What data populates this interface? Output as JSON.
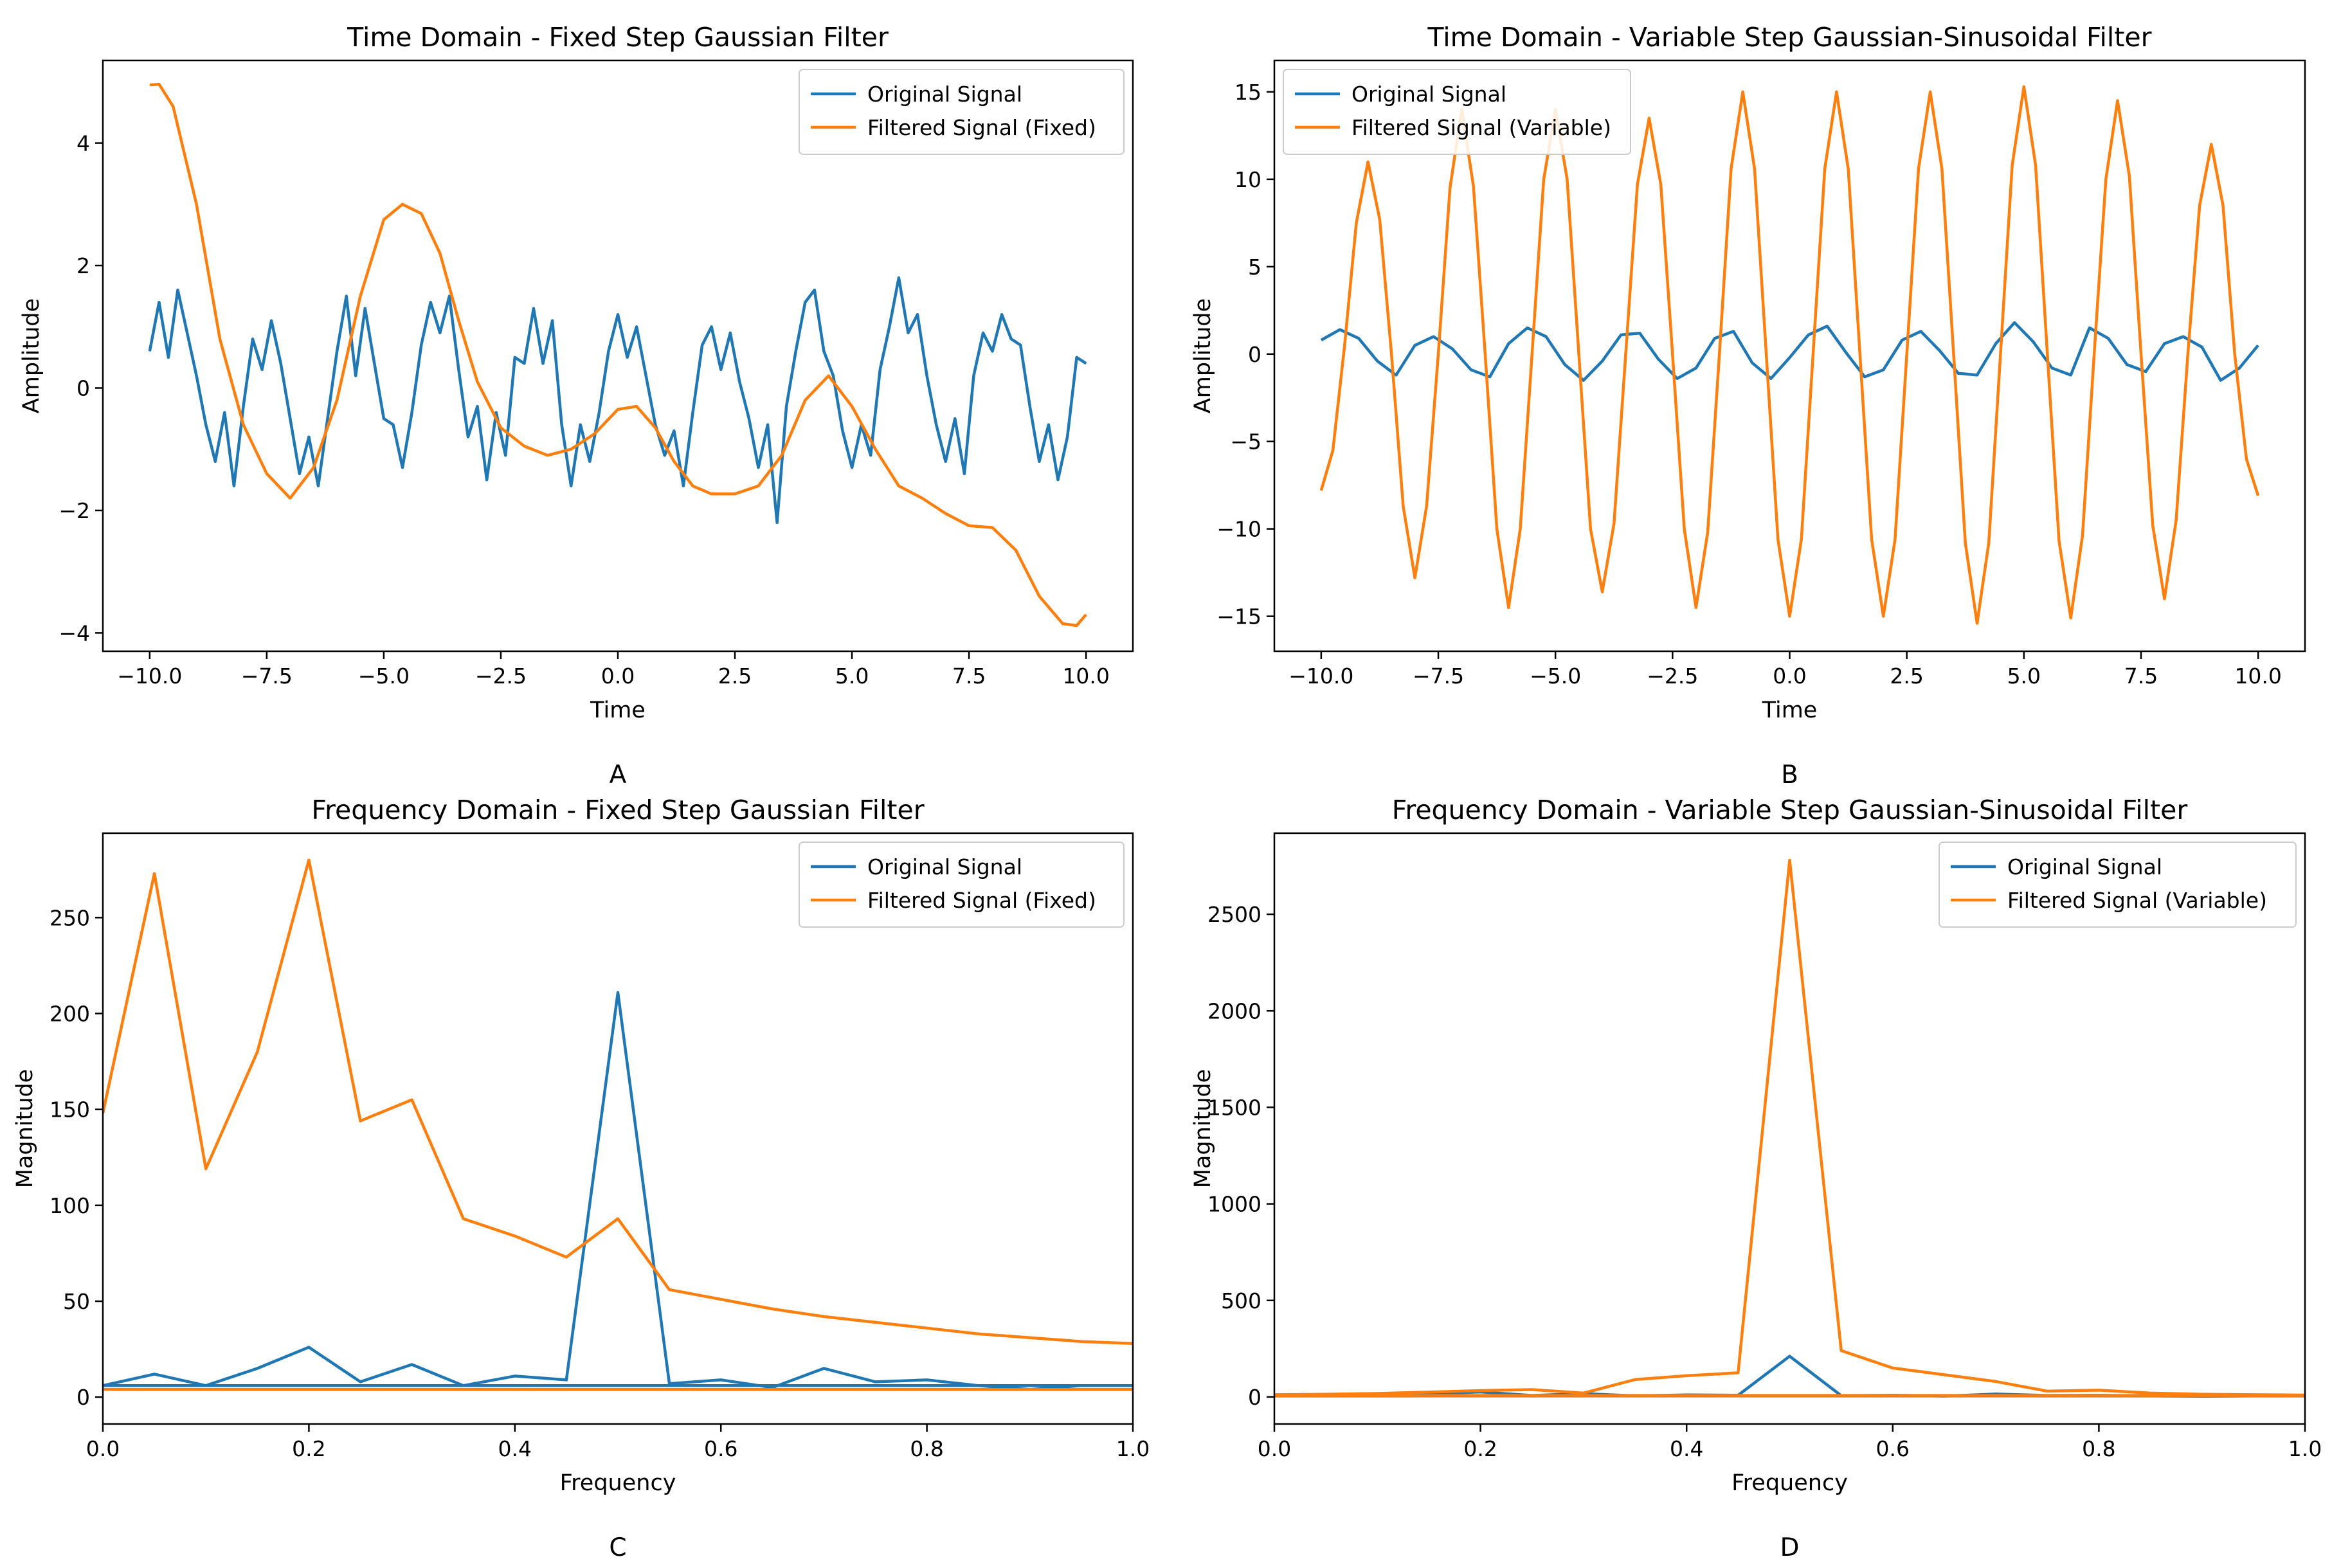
{
  "colors": {
    "original": "#1f77b4",
    "filtered": "#ff7f0e"
  },
  "chart_data": [
    {
      "type": "line",
      "title": "Time Domain - Fixed Step Gaussian Filter",
      "xlabel": "Time",
      "ylabel": "Amplitude",
      "panel_label": "A",
      "xlim": [
        -11.0,
        11.0
      ],
      "ylim": [
        -4.3,
        5.35
      ],
      "xticks": [
        -10.0,
        -7.5,
        -5.0,
        -2.5,
        0.0,
        2.5,
        5.0,
        7.5,
        10.0
      ],
      "xtick_labels": [
        "−10.0",
        "−7.5",
        "−5.0",
        "−2.5",
        "0.0",
        "2.5",
        "5.0",
        "7.5",
        "10.0"
      ],
      "yticks": [
        -4,
        -2,
        0,
        2,
        4
      ],
      "ytick_labels": [
        "−4",
        "−2",
        "0",
        "2",
        "4"
      ],
      "legend_position": "upper right",
      "series": [
        {
          "name": "Original Signal",
          "color": "#1f77b4",
          "x": [
            -10.0,
            -9.8,
            -9.6,
            -9.4,
            -9.2,
            -9.0,
            -8.8,
            -8.6,
            -8.4,
            -8.2,
            -8.0,
            -7.8,
            -7.6,
            -7.4,
            -7.2,
            -7.0,
            -6.8,
            -6.6,
            -6.4,
            -6.2,
            -6.0,
            -5.8,
            -5.6,
            -5.4,
            -5.2,
            -5.0,
            -4.8,
            -4.6,
            -4.4,
            -4.2,
            -4.0,
            -3.8,
            -3.6,
            -3.4,
            -3.2,
            -3.0,
            -2.8,
            -2.6,
            -2.4,
            -2.2,
            -2.0,
            -1.8,
            -1.6,
            -1.4,
            -1.2,
            -1.0,
            -0.8,
            -0.6,
            -0.4,
            -0.2,
            0.0,
            0.2,
            0.4,
            0.6,
            0.8,
            1.0,
            1.2,
            1.4,
            1.6,
            1.8,
            2.0,
            2.2,
            2.4,
            2.6,
            2.8,
            3.0,
            3.2,
            3.4,
            3.6,
            3.8,
            4.0,
            4.2,
            4.4,
            4.6,
            4.8,
            5.0,
            5.2,
            5.4,
            5.6,
            5.8,
            6.0,
            6.2,
            6.4,
            6.6,
            6.8,
            7.0,
            7.2,
            7.4,
            7.6,
            7.8,
            8.0,
            8.2,
            8.4,
            8.6,
            8.8,
            9.0,
            9.2,
            9.4,
            9.6,
            9.8,
            10.0
          ],
          "y": [
            0.6,
            1.4,
            0.5,
            1.6,
            0.9,
            0.2,
            -0.6,
            -1.2,
            -0.4,
            -1.6,
            -0.3,
            0.8,
            0.3,
            1.1,
            0.4,
            -0.5,
            -1.4,
            -0.8,
            -1.6,
            -0.5,
            0.6,
            1.5,
            0.2,
            1.3,
            0.4,
            -0.5,
            -0.6,
            -1.3,
            -0.4,
            0.7,
            1.4,
            0.9,
            1.5,
            0.3,
            -0.8,
            -0.3,
            -1.5,
            -0.4,
            -1.1,
            0.5,
            0.4,
            1.3,
            0.4,
            1.1,
            -0.6,
            -1.6,
            -0.6,
            -1.2,
            -0.4,
            0.6,
            1.2,
            0.5,
            1.0,
            0.2,
            -0.6,
            -1.1,
            -0.7,
            -1.6,
            -0.4,
            0.7,
            1.0,
            0.3,
            0.9,
            0.1,
            -0.5,
            -1.3,
            -0.6,
            -2.2,
            -0.3,
            0.6,
            1.4,
            1.6,
            0.6,
            0.2,
            -0.7,
            -1.3,
            -0.6,
            -1.1,
            0.3,
            1.0,
            1.8,
            0.9,
            1.2,
            0.2,
            -0.6,
            -1.2,
            -0.5,
            -1.4,
            0.2,
            0.9,
            0.6,
            1.2,
            0.8,
            0.7,
            -0.3,
            -1.2,
            -0.6,
            -1.5,
            -0.8,
            0.5,
            0.4
          ]
        },
        {
          "name": "Filtered Signal (Fixed)",
          "color": "#ff7f0e",
          "x": [
            -10.0,
            -9.8,
            -9.5,
            -9.0,
            -8.5,
            -8.0,
            -7.5,
            -7.0,
            -6.5,
            -6.0,
            -5.5,
            -5.0,
            -4.6,
            -4.2,
            -3.8,
            -3.4,
            -3.0,
            -2.5,
            -2.0,
            -1.5,
            -1.0,
            -0.5,
            0.0,
            0.4,
            0.8,
            1.2,
            1.6,
            2.0,
            2.5,
            3.0,
            3.5,
            4.0,
            4.5,
            5.0,
            5.5,
            6.0,
            6.5,
            7.0,
            7.5,
            8.0,
            8.5,
            9.0,
            9.5,
            9.8,
            10.0
          ],
          "y": [
            4.95,
            4.96,
            4.6,
            3.0,
            0.8,
            -0.6,
            -1.4,
            -1.8,
            -1.3,
            -0.2,
            1.5,
            2.75,
            3.0,
            2.85,
            2.2,
            1.1,
            0.1,
            -0.65,
            -0.95,
            -1.1,
            -1.0,
            -0.75,
            -0.35,
            -0.3,
            -0.65,
            -1.2,
            -1.6,
            -1.73,
            -1.73,
            -1.6,
            -1.1,
            -0.2,
            0.2,
            -0.3,
            -1.0,
            -1.6,
            -1.8,
            -2.05,
            -2.25,
            -2.28,
            -2.65,
            -3.4,
            -3.85,
            -3.88,
            -3.7
          ]
        }
      ]
    },
    {
      "type": "line",
      "title": "Time Domain - Variable Step Gaussian-Sinusoidal Filter",
      "xlabel": "Time",
      "ylabel": "Amplitude",
      "panel_label": "B",
      "xlim": [
        -11.0,
        11.0
      ],
      "ylim": [
        -17.0,
        16.8
      ],
      "xticks": [
        -10.0,
        -7.5,
        -5.0,
        -2.5,
        0.0,
        2.5,
        5.0,
        7.5,
        10.0
      ],
      "xtick_labels": [
        "−10.0",
        "−7.5",
        "−5.0",
        "−2.5",
        "0.0",
        "2.5",
        "5.0",
        "7.5",
        "10.0"
      ],
      "yticks": [
        -15,
        -10,
        -5,
        0,
        5,
        10,
        15
      ],
      "ytick_labels": [
        "−15",
        "−10",
        "−5",
        "0",
        "5",
        "10",
        "15"
      ],
      "legend_position": "upper left",
      "series": [
        {
          "name": "Original Signal",
          "color": "#1f77b4",
          "x": [
            -10.0,
            -9.6,
            -9.2,
            -8.8,
            -8.4,
            -8.0,
            -7.6,
            -7.2,
            -6.8,
            -6.4,
            -6.0,
            -5.6,
            -5.2,
            -4.8,
            -4.4,
            -4.0,
            -3.6,
            -3.2,
            -2.8,
            -2.4,
            -2.0,
            -1.6,
            -1.2,
            -0.8,
            -0.4,
            0.0,
            0.4,
            0.8,
            1.2,
            1.6,
            2.0,
            2.4,
            2.8,
            3.2,
            3.6,
            4.0,
            4.4,
            4.8,
            5.2,
            5.6,
            6.0,
            6.4,
            6.8,
            7.2,
            7.6,
            8.0,
            8.4,
            8.8,
            9.2,
            9.6,
            10.0
          ],
          "y": [
            0.8,
            1.4,
            0.9,
            -0.4,
            -1.2,
            0.5,
            1.0,
            0.3,
            -0.9,
            -1.3,
            0.6,
            1.5,
            1.0,
            -0.6,
            -1.5,
            -0.4,
            1.1,
            1.2,
            -0.3,
            -1.4,
            -0.8,
            0.9,
            1.3,
            -0.5,
            -1.4,
            -0.2,
            1.1,
            1.6,
            0.1,
            -1.3,
            -0.9,
            0.8,
            1.3,
            0.2,
            -1.1,
            -1.2,
            0.6,
            1.8,
            0.7,
            -0.8,
            -1.2,
            1.5,
            0.9,
            -0.6,
            -1.0,
            0.6,
            1.0,
            0.4,
            -1.5,
            -0.8,
            0.5
          ]
        },
        {
          "name": "Filtered Signal (Variable)",
          "color": "#ff7f0e",
          "x": [
            -10.0,
            -9.75,
            -9.5,
            -9.25,
            -9.0,
            -8.75,
            -8.5,
            -8.25,
            -8.0,
            -7.75,
            -7.5,
            -7.25,
            -7.0,
            -6.75,
            -6.5,
            -6.25,
            -6.0,
            -5.75,
            -5.5,
            -5.25,
            -5.0,
            -4.75,
            -4.5,
            -4.25,
            -4.0,
            -3.75,
            -3.5,
            -3.25,
            -3.0,
            -2.75,
            -2.5,
            -2.25,
            -2.0,
            -1.75,
            -1.5,
            -1.25,
            -1.0,
            -0.75,
            -0.5,
            -0.25,
            0.0,
            0.25,
            0.5,
            0.75,
            1.0,
            1.25,
            1.5,
            1.75,
            2.0,
            2.25,
            2.5,
            2.75,
            3.0,
            3.25,
            3.5,
            3.75,
            4.0,
            4.25,
            4.5,
            4.75,
            5.0,
            5.25,
            5.5,
            5.75,
            6.0,
            6.25,
            6.5,
            6.75,
            7.0,
            7.25,
            7.5,
            7.75,
            8.0,
            8.25,
            8.5,
            8.75,
            9.0,
            9.25,
            9.5,
            9.75,
            10.0
          ],
          "y": [
            -7.8,
            -5.5,
            0.5,
            7.5,
            11.0,
            7.7,
            0.0,
            -8.7,
            -12.8,
            -8.7,
            0.0,
            9.5,
            14.0,
            9.6,
            0.0,
            -10.0,
            -14.5,
            -10.0,
            0.0,
            10.0,
            14.0,
            10.0,
            0.0,
            -10.0,
            -13.6,
            -9.7,
            0.0,
            9.7,
            13.5,
            9.7,
            0.0,
            -10.0,
            -14.5,
            -10.2,
            0.0,
            10.6,
            15.0,
            10.6,
            0.0,
            -10.6,
            -15.0,
            -10.6,
            0.0,
            10.6,
            15.0,
            10.6,
            0.0,
            -10.6,
            -15.0,
            -10.6,
            0.0,
            10.6,
            15.0,
            10.6,
            0.0,
            -10.8,
            -15.4,
            -10.8,
            0.0,
            10.8,
            15.3,
            10.8,
            0.0,
            -10.7,
            -15.1,
            -10.4,
            0.0,
            10.0,
            14.5,
            10.2,
            0.0,
            -9.8,
            -14.0,
            -9.5,
            0.0,
            8.5,
            12.0,
            8.5,
            0.0,
            -6.0,
            -8.1
          ]
        }
      ]
    },
    {
      "type": "line",
      "title": "Frequency Domain - Fixed Step Gaussian Filter",
      "xlabel": "Frequency",
      "ylabel": "Magnitude",
      "panel_label": "C",
      "xlim": [
        0.0,
        1.0
      ],
      "ylim": [
        -14,
        294
      ],
      "xticks": [
        0.0,
        0.2,
        0.4,
        0.6,
        0.8,
        1.0
      ],
      "xtick_labels": [
        "0.0",
        "0.2",
        "0.4",
        "0.6",
        "0.8",
        "1.0"
      ],
      "yticks": [
        0,
        50,
        100,
        150,
        200,
        250
      ],
      "ytick_labels": [
        "0",
        "50",
        "100",
        "150",
        "200",
        "250"
      ],
      "legend_position": "upper right",
      "series": [
        {
          "name": "Original Signal",
          "color": "#1f77b4",
          "x": [
            0.0,
            0.05,
            0.1,
            0.15,
            0.2,
            0.25,
            0.3,
            0.35,
            0.4,
            0.45,
            0.5,
            0.55,
            0.6,
            0.65,
            0.7,
            0.75,
            0.8,
            0.85,
            0.9,
            0.95,
            1.0
          ],
          "y": [
            6,
            12,
            6,
            15,
            26,
            8,
            17,
            6,
            11,
            9,
            211,
            7,
            9,
            5,
            15,
            8,
            9,
            6,
            4,
            6,
            6
          ],
          "mirror_y": 6
        },
        {
          "name": "Filtered Signal (Fixed)",
          "color": "#ff7f0e",
          "x": [
            0.0,
            0.05,
            0.1,
            0.15,
            0.2,
            0.25,
            0.3,
            0.35,
            0.4,
            0.45,
            0.5,
            0.55,
            0.6,
            0.65,
            0.7,
            0.75,
            0.8,
            0.85,
            0.9,
            0.95,
            1.0
          ],
          "y": [
            148,
            273,
            119,
            180,
            280,
            144,
            155,
            93,
            84,
            73,
            93,
            56,
            51,
            46,
            42,
            39,
            36,
            33,
            31,
            29,
            28
          ],
          "mirror_y": 4
        }
      ]
    },
    {
      "type": "line",
      "title": "Frequency Domain - Variable Step Gaussian-Sinusoidal Filter",
      "xlabel": "Frequency",
      "ylabel": "Magnitude",
      "panel_label": "D",
      "xlim": [
        0.0,
        1.0
      ],
      "ylim": [
        -140,
        2920
      ],
      "xticks": [
        0.0,
        0.2,
        0.4,
        0.6,
        0.8,
        1.0
      ],
      "xtick_labels": [
        "0.0",
        "0.2",
        "0.4",
        "0.6",
        "0.8",
        "1.0"
      ],
      "yticks": [
        0,
        500,
        1000,
        1500,
        2000,
        2500
      ],
      "ytick_labels": [
        "0",
        "500",
        "1000",
        "1500",
        "2000",
        "2500"
      ],
      "legend_position": "upper right",
      "series": [
        {
          "name": "Original Signal",
          "color": "#1f77b4",
          "x": [
            0.0,
            0.05,
            0.1,
            0.15,
            0.2,
            0.25,
            0.3,
            0.35,
            0.4,
            0.45,
            0.5,
            0.55,
            0.6,
            0.65,
            0.7,
            0.75,
            0.8,
            0.85,
            0.9,
            0.95,
            1.0
          ],
          "y": [
            6,
            12,
            6,
            15,
            26,
            8,
            17,
            6,
            11,
            9,
            211,
            7,
            9,
            5,
            15,
            8,
            9,
            6,
            4,
            6,
            6
          ],
          "mirror_y": 6
        },
        {
          "name": "Filtered Signal (Variable)",
          "color": "#ff7f0e",
          "x": [
            0.0,
            0.05,
            0.1,
            0.15,
            0.2,
            0.25,
            0.3,
            0.35,
            0.4,
            0.45,
            0.5,
            0.55,
            0.6,
            0.65,
            0.7,
            0.75,
            0.8,
            0.85,
            0.9,
            0.95,
            1.0
          ],
          "y": [
            12,
            14,
            18,
            25,
            33,
            38,
            20,
            90,
            110,
            125,
            2780,
            240,
            150,
            115,
            80,
            30,
            35,
            20,
            14,
            12,
            10
          ],
          "mirror_y": 8
        }
      ]
    }
  ]
}
